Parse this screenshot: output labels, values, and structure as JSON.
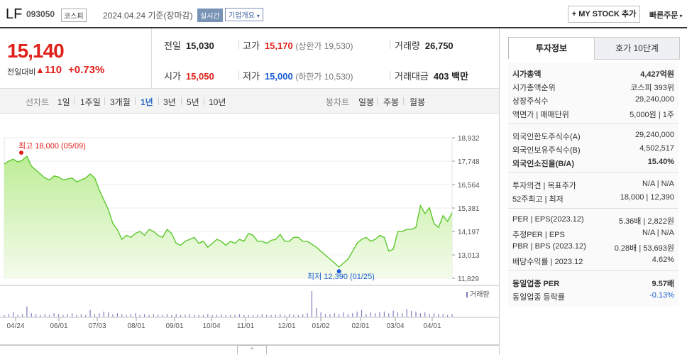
{
  "header": {
    "name": "LF",
    "code": "093050",
    "market": "코스피",
    "date_text": "2024.04.24  기준(장마감)",
    "realtime": "실시간",
    "company_info": "기업개요",
    "my_stock": "+ MY STOCK 추가",
    "quick_order": "빠른주문"
  },
  "price": {
    "current": "15,140",
    "change_label": "전일대비",
    "change_arrow": "▲",
    "change": "110",
    "change_pct": "+0.73%"
  },
  "quote": {
    "prev_close_label": "전일",
    "prev_close": "15,030",
    "high_label": "고가",
    "high": "15,170",
    "upper_limit": "(상한가 19,530)",
    "volume_label": "거래량",
    "volume": "26,750",
    "open_label": "시가",
    "open": "15,050",
    "low_label": "저가",
    "low": "15,000",
    "lower_limit": "(하한가 10,530)",
    "amount_label": "거래대금",
    "amount": "403 백만"
  },
  "tabs": {
    "line_label": "선차트",
    "periods": [
      "1일",
      "1주일",
      "3개월",
      "1년",
      "3년",
      "5년",
      "10년"
    ],
    "selected_period": "1년",
    "candle_label": "봉차트",
    "candles": [
      "일봉",
      "주봉",
      "월봉"
    ]
  },
  "chart_data": {
    "type": "area",
    "y_ticks": [
      "18,932",
      "17,748",
      "16,564",
      "15,381",
      "14,197",
      "13,013",
      "11,829"
    ],
    "ylim": [
      11829,
      18932
    ],
    "x_ticks": [
      "04/24",
      "06/01",
      "07/03",
      "08/01",
      "09/01",
      "10/04",
      "11/01",
      "12/01",
      "01/02",
      "02/01",
      "03/04",
      "04/01"
    ],
    "high_annotation": "최고 18,000 (05/09)",
    "low_annotation": "최저 12,390 (01/25)",
    "volume_label": "거래량",
    "values": [
      17600,
      17750,
      17850,
      17700,
      17800,
      18000,
      17500,
      17300,
      17100,
      16900,
      16800,
      17000,
      16950,
      16800,
      16850,
      16900,
      16700,
      16800,
      16900,
      17100,
      16900,
      16300,
      15800,
      15300,
      14600,
      14300,
      13800,
      14000,
      13900,
      14100,
      14200,
      14000,
      14300,
      14200,
      14000,
      13900,
      14300,
      14100,
      13600,
      13500,
      13700,
      13800,
      13900,
      13600,
      13700,
      13400,
      13600,
      13800,
      13700,
      13500,
      13700,
      13600,
      13800,
      13700,
      14100,
      14000,
      13700,
      13700,
      13600,
      13750,
      13800,
      14050,
      13700,
      13700,
      13900,
      13900,
      13700,
      13700,
      13550,
      13400,
      13200,
      13000,
      12800,
      12600,
      12400,
      12600,
      12800,
      13200,
      13600,
      13800,
      13900,
      13700,
      13800,
      14000,
      13900,
      13200,
      13300,
      14200,
      14200,
      14300,
      14300,
      14400,
      15500,
      15100,
      15400,
      14600,
      14400,
      15000,
      14700,
      15140
    ],
    "volume": [
      2,
      3,
      5,
      2,
      3,
      12,
      4,
      3,
      2,
      3,
      2,
      4,
      3,
      2,
      3,
      4,
      2,
      3,
      2,
      8,
      3,
      4,
      6,
      5,
      3,
      4,
      3,
      2,
      3,
      4,
      2,
      3,
      2,
      3,
      2,
      2,
      3,
      2,
      3,
      2,
      2,
      3,
      2,
      2,
      2,
      3,
      2,
      2,
      3,
      2,
      2,
      2,
      3,
      2,
      2,
      2,
      2,
      3,
      2,
      2,
      2,
      3,
      2,
      3,
      2,
      2,
      3,
      4,
      30,
      10,
      5,
      3,
      3,
      4,
      3,
      5,
      3,
      4,
      6,
      8,
      3,
      5,
      4,
      5,
      6,
      4,
      7,
      5,
      4,
      9,
      7,
      6,
      4,
      5,
      3,
      4,
      3,
      3,
      2,
      3
    ]
  },
  "invest": {
    "tab_on": "투자정보",
    "tab_off": "호가 10단계",
    "rows1": [
      {
        "k": "시가총액",
        "v": "4,427억원",
        "bold": true
      },
      {
        "k": "시가총액순위",
        "v": "코스피 393위"
      },
      {
        "k": "상장주식수",
        "v": "29,240,000"
      },
      {
        "k": "액면가 | 매매단위",
        "v": "5,000원 | 1주"
      }
    ],
    "rows2": [
      {
        "k": "외국인한도주식수(A)",
        "v": "29,240,000"
      },
      {
        "k": "외국인보유주식수(B)",
        "v": "4,502,517"
      },
      {
        "k": "외국인소진율(B/A)",
        "v": "15.40%",
        "bold": true
      }
    ],
    "rows3": [
      {
        "k": "투자의견 | 목표주가",
        "v": "N/A | N/A"
      },
      {
        "k": "52주최고 | 최저",
        "v": "18,000 | 12,390"
      }
    ],
    "rows4": [
      {
        "k": "PER | EPS(2023.12)",
        "v": "5.36배 | 2,822원"
      },
      {
        "k": "추정PER | EPS",
        "v": "N/A | N/A"
      },
      {
        "k": "PBR | BPS (2023.12)",
        "v": "0.28배 | 53,693원"
      },
      {
        "k": "배당수익률 | 2023.12",
        "v": "4.62%"
      }
    ],
    "rows5": [
      {
        "k": "동일업종 PER",
        "v": "9.57배",
        "bold": true
      },
      {
        "k": "동일업종 등락률",
        "v": "-0.13%"
      }
    ]
  }
}
